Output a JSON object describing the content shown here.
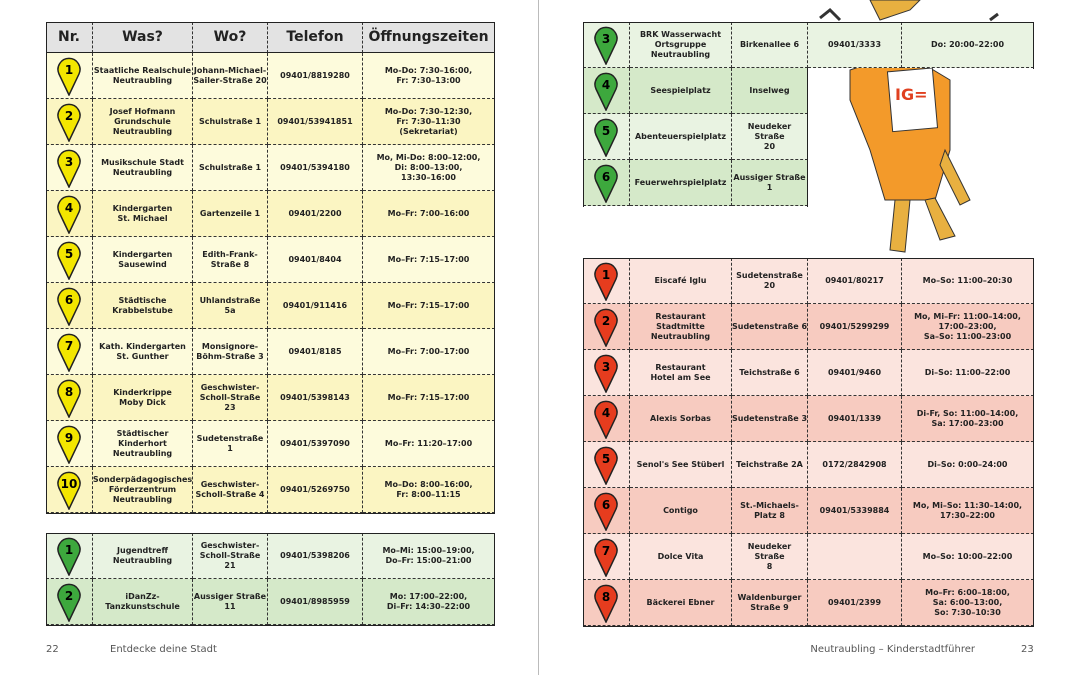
{
  "left_page": {
    "page_number": "22",
    "footer": "Entdecke deine Stadt",
    "header": [
      "Nr.",
      "Was?",
      "Wo?",
      "Telefon",
      "Öffnungszeiten"
    ],
    "yellow_rows": [
      {
        "nr": "1",
        "was": "Staatliche Realschule\nNeutraubling",
        "wo": "Johann-Michael-\nSailer-Straße 20",
        "telefon": "09401/8819280",
        "zeiten": "Mo-Do: 7:30–16:00,\nFr: 7:30–13:00"
      },
      {
        "nr": "2",
        "was": "Josef Hofmann\nGrundschule\nNeutraubling",
        "wo": "Schulstraße 1",
        "telefon": "09401/53941851",
        "zeiten": "Mo-Do: 7:30–12:30,\nFr: 7:30–11:30\n(Sekretariat)"
      },
      {
        "nr": "3",
        "was": "Musikschule Stadt\nNeutraubling",
        "wo": "Schulstraße 1",
        "telefon": "09401/5394180",
        "zeiten": "Mo, Mi-Do: 8:00–12:00,\nDi: 8:00–13:00,\n13:30–16:00"
      },
      {
        "nr": "4",
        "was": "Kindergarten\nSt. Michael",
        "wo": "Gartenzeile 1",
        "telefon": "09401/2200",
        "zeiten": "Mo–Fr: 7:00–16:00"
      },
      {
        "nr": "5",
        "was": "Kindergarten\nSausewind",
        "wo": "Edith-Frank-\nStraße 8",
        "telefon": "09401/8404",
        "zeiten": "Mo–Fr: 7:15–17:00"
      },
      {
        "nr": "6",
        "was": "Städtische\nKrabbelstube",
        "wo": "Uhlandstraße 5a",
        "telefon": "09401/911416",
        "zeiten": "Mo–Fr: 7:15–17:00"
      },
      {
        "nr": "7",
        "was": "Kath. Kindergarten\nSt. Gunther",
        "wo": "Monsignore-\nBöhm-Straße 3",
        "telefon": "09401/8185",
        "zeiten": "Mo–Fr: 7:00–17:00"
      },
      {
        "nr": "8",
        "was": "Kinderkrippe\nMoby Dick",
        "wo": "Geschwister-\nScholl-Straße 23",
        "telefon": "09401/5398143",
        "zeiten": "Mo–Fr: 7:15–17:00"
      },
      {
        "nr": "9",
        "was": "Städtischer Kinderhort\nNeutraubling",
        "wo": "Sudetenstraße 1",
        "telefon": "09401/5397090",
        "zeiten": "Mo–Fr: 11:20–17:00"
      },
      {
        "nr": "10",
        "was": "Sonderpädagogisches\nFörderzentrum\nNeutraubling",
        "wo": "Geschwister-\nScholl-Straße 4",
        "telefon": "09401/5269750",
        "zeiten": "Mo–Do: 8:00–16:00,\nFr: 8:00–11:15"
      }
    ],
    "green_rows": [
      {
        "nr": "1",
        "was": "Jugendtreff\nNeutraubling",
        "wo": "Geschwister-\nScholl-Straße 21",
        "telefon": "09401/5398206",
        "zeiten": "Mo–Mi: 15:00–19:00,\nDo–Fr: 15:00–21:00"
      },
      {
        "nr": "2",
        "was": "iDanZz-\nTanzkunstschule",
        "wo": "Aussiger Straße\n11",
        "telefon": "09401/8985959",
        "zeiten": "Mo: 17:00–22:00,\nDi–Fr: 14:30–22:00"
      }
    ]
  },
  "right_page": {
    "page_number": "23",
    "footer": "Neutraubling – Kinderstadtführer",
    "green_rows": [
      {
        "nr": "3",
        "was": "BRK Wasserwacht\nOrtsgruppe\nNeutraubling",
        "wo": "Birkenallee 6",
        "telefon": "09401/3333",
        "zeiten": "Do: 20:00–22:00"
      },
      {
        "nr": "4",
        "was": "Seespielplatz",
        "wo": "Inselweg"
      },
      {
        "nr": "5",
        "was": "Abenteuerspielplatz",
        "wo": "Neudeker Straße\n20"
      },
      {
        "nr": "6",
        "was": "Feuerwehrspielplatz",
        "wo": "Aussiger Straße\n1"
      }
    ],
    "red_rows": [
      {
        "nr": "1",
        "was": "Eiscafé Iglu",
        "wo": "Sudetenstraße\n20",
        "telefon": "09401/80217",
        "zeiten": "Mo–So: 11:00–20:30"
      },
      {
        "nr": "2",
        "was": "Restaurant Stadtmitte\nNeutraubling",
        "wo": "Sudetenstraße 6",
        "telefon": "09401/5299299",
        "zeiten": "Mo, Mi–Fr: 11:00–14:00,\n17:00–23:00,\nSa–So: 11:00–23:00"
      },
      {
        "nr": "3",
        "was": "Restaurant\nHotel am See",
        "wo": "Teichstraße 6",
        "telefon": "09401/9460",
        "zeiten": "Di–So: 11:00–22:00"
      },
      {
        "nr": "4",
        "was": "Alexis Sorbas",
        "wo": "Sudetenstraße 3",
        "telefon": "09401/1339",
        "zeiten": "Di-Fr, So: 11:00–14:00,\nSa: 17:00–23:00"
      },
      {
        "nr": "5",
        "was": "Senol's See Stüberl",
        "wo": "Teichstraße 2A",
        "telefon": "0172/2842908",
        "zeiten": "Di–So: 0:00–24:00"
      },
      {
        "nr": "6",
        "was": "Contigo",
        "wo": "St.-Michaels-\nPlatz 8",
        "telefon": "09401/5339884",
        "zeiten": "Mo, Mi–So: 11:30–14:00,\n17:30–22:00"
      },
      {
        "nr": "7",
        "was": "Dolce Vita",
        "wo": "Neudeker Straße\n8",
        "zeiten": "Mo–So: 10:00–22:00"
      },
      {
        "nr": "8",
        "was": "Bäckerei Ebner",
        "wo": "Waldenburger\nStraße 9",
        "telefon": "09401/2399",
        "zeiten": "Mo–Fr: 6:00–18:00,\nSa: 6:00–13:00,\nSo: 7:30–10:30"
      }
    ]
  }
}
